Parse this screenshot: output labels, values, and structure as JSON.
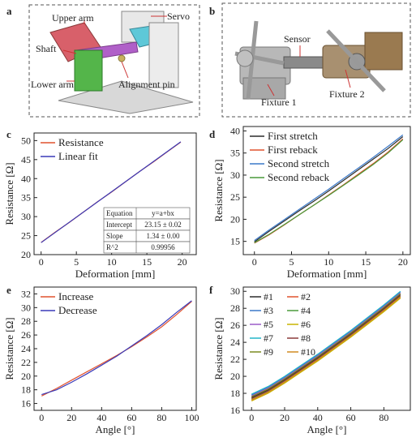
{
  "panels": {
    "a": {
      "letter": "a",
      "labels": {
        "upper_arm": "Upper arm",
        "servo": "Servo",
        "shaft": "Shaft",
        "lower_arm": "Lower arm",
        "alignment_pin": "Alignment pin"
      }
    },
    "b": {
      "letter": "b",
      "labels": {
        "sensor": "Sensor",
        "fixture1": "Fixture 1",
        "fixture2": "Fixture 2"
      }
    }
  },
  "chart_data": [
    {
      "panel": "c",
      "type": "line",
      "xlabel": "Deformation [mm]",
      "ylabel": "Resistance [Ω]",
      "xlim": [
        -1,
        22
      ],
      "ylim": [
        20,
        52
      ],
      "xticks": [
        0,
        5,
        10,
        15,
        20
      ],
      "yticks": [
        20,
        25,
        30,
        35,
        40,
        45,
        50
      ],
      "legend_position": "top-left",
      "series": [
        {
          "name": "Resistance",
          "color": "#e0522e",
          "x": [
            0,
            2,
            4,
            6,
            8,
            10,
            12,
            14,
            16,
            18,
            19.8
          ],
          "y": [
            23.2,
            25.9,
            28.5,
            31.2,
            33.9,
            36.5,
            39.2,
            41.9,
            44.5,
            47.2,
            49.6
          ]
        },
        {
          "name": "Linear fit",
          "color": "#3a3ab8",
          "x": [
            0,
            19.8
          ],
          "y": [
            23.15,
            49.68
          ]
        }
      ],
      "table": {
        "rows": [
          [
            "Equation",
            "y=a+bx"
          ],
          [
            "Intercept",
            "23.15 ± 0.02"
          ],
          [
            "Slope",
            "1.34 ± 0.00"
          ],
          [
            "R^2",
            "0.99956"
          ]
        ]
      }
    },
    {
      "panel": "d",
      "type": "line",
      "xlabel": "Deformation [mm]",
      "ylabel": "Resistance [Ω]",
      "xlim": [
        -1.5,
        21
      ],
      "ylim": [
        12,
        41
      ],
      "xticks": [
        0,
        5,
        10,
        15,
        20
      ],
      "yticks": [
        15,
        20,
        25,
        30,
        35,
        40
      ],
      "legend_position": "top-left",
      "series": [
        {
          "name": "First stretch",
          "color": "#2b2b2b",
          "x": [
            0,
            2,
            4,
            6,
            8,
            10,
            12,
            14,
            16,
            18,
            20
          ],
          "y": [
            14.9,
            17.3,
            19.6,
            21.9,
            24.1,
            26.4,
            28.8,
            31.2,
            33.6,
            36.0,
            38.7
          ]
        },
        {
          "name": "First reback",
          "color": "#e0522e",
          "x": [
            0,
            2,
            4,
            6,
            8,
            10,
            12,
            14,
            16,
            18,
            20
          ],
          "y": [
            14.6,
            16.5,
            18.7,
            21.0,
            23.2,
            25.5,
            27.8,
            30.2,
            32.6,
            35.2,
            38.2
          ]
        },
        {
          "name": "Second stretch",
          "color": "#3a78c8",
          "x": [
            0,
            2,
            4,
            6,
            8,
            10,
            12,
            14,
            16,
            18,
            20
          ],
          "y": [
            15.2,
            17.6,
            19.9,
            22.2,
            24.5,
            26.8,
            29.2,
            31.6,
            34.0,
            36.5,
            39.1
          ]
        },
        {
          "name": "Second reback",
          "color": "#4a9a3a",
          "x": [
            0,
            2,
            4,
            6,
            8,
            10,
            12,
            14,
            16,
            18,
            20
          ],
          "y": [
            14.7,
            16.6,
            18.8,
            21.0,
            23.2,
            25.4,
            27.7,
            30.0,
            32.4,
            35.0,
            38.0
          ]
        }
      ]
    },
    {
      "panel": "e",
      "type": "line",
      "xlabel": "Angle [°]",
      "ylabel": "Resistance [Ω]",
      "xlim": [
        -5,
        103
      ],
      "ylim": [
        15,
        33
      ],
      "xticks": [
        0,
        20,
        40,
        60,
        80,
        100
      ],
      "yticks": [
        16,
        18,
        20,
        22,
        24,
        26,
        28,
        30,
        32
      ],
      "legend_position": "top-left",
      "series": [
        {
          "name": "Increase",
          "color": "#e0522e",
          "x": [
            0,
            10,
            20,
            30,
            40,
            50,
            60,
            70,
            80,
            90,
            100
          ],
          "y": [
            17.1,
            18.2,
            19.4,
            20.6,
            21.8,
            23.0,
            24.3,
            25.7,
            27.2,
            29.0,
            30.9
          ]
        },
        {
          "name": "Decrease",
          "color": "#3a3ab8",
          "x": [
            0,
            10,
            20,
            30,
            40,
            50,
            60,
            70,
            80,
            90,
            100
          ],
          "y": [
            17.3,
            18.0,
            19.1,
            20.3,
            21.6,
            22.9,
            24.4,
            25.9,
            27.5,
            29.3,
            31.0
          ]
        }
      ]
    },
    {
      "panel": "f",
      "type": "line",
      "xlabel": "Angle [°]",
      "ylabel": "Resistance [Ω]",
      "xlim": [
        -5,
        96
      ],
      "ylim": [
        16,
        30.5
      ],
      "xticks": [
        0,
        20,
        40,
        60,
        80
      ],
      "yticks": [
        16,
        18,
        20,
        22,
        24,
        26,
        28,
        30
      ],
      "legend_position": "top-left",
      "base_x": [
        0,
        10,
        20,
        30,
        40,
        50,
        60,
        70,
        80,
        90
      ],
      "base_y": [
        17.5,
        18.4,
        19.6,
        20.9,
        22.2,
        23.6,
        25.0,
        26.5,
        28.0,
        29.6
      ],
      "series": [
        {
          "name": "#1",
          "color": "#2b2b2b",
          "offset": 0.0
        },
        {
          "name": "#2",
          "color": "#e0522e",
          "offset": -0.3
        },
        {
          "name": "#3",
          "color": "#3a78c8",
          "offset": 0.3
        },
        {
          "name": "#4",
          "color": "#4a9a3a",
          "offset": -0.2
        },
        {
          "name": "#5",
          "color": "#9a5ac8",
          "offset": 0.2
        },
        {
          "name": "#6",
          "color": "#c8b400",
          "offset": -0.4
        },
        {
          "name": "#7",
          "color": "#22b4c8",
          "offset": 0.4
        },
        {
          "name": "#8",
          "color": "#8a3a3a",
          "offset": -0.1
        },
        {
          "name": "#9",
          "color": "#7a8a20",
          "offset": 0.1
        },
        {
          "name": "#10",
          "color": "#d08a20",
          "offset": -0.25
        }
      ]
    }
  ]
}
